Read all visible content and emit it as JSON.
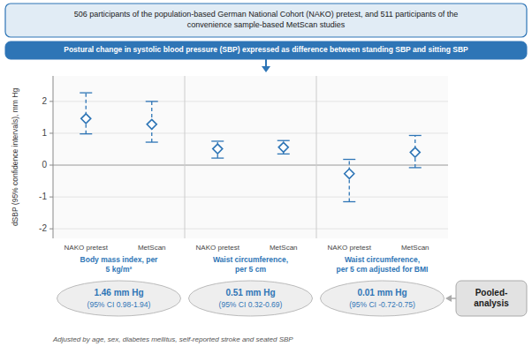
{
  "chart_data": {
    "type": "errorbar",
    "title": "506 participants of the population-based German National Cohort (NAKO) pretest, and 511 participants of the\nconvenience sample-based MetScan studies",
    "subtitle": "Postural change in systolic blood pressure (SBP) expressed as difference between standing SBP and sitting SBP",
    "ylabel": "dSBP (95% confidence intervals), mm Hg",
    "categories": [
      "NAKO pretest",
      "MetScan",
      "NAKO pretest",
      "MetScan",
      "NAKO pretest",
      "MetScan"
    ],
    "values": [
      1.46,
      1.28,
      0.51,
      0.56,
      -0.27,
      0.4
    ],
    "ci_low": [
      0.98,
      0.72,
      0.22,
      0.35,
      -1.15,
      -0.08
    ],
    "ci_high": [
      2.27,
      2.0,
      0.75,
      0.77,
      0.18,
      0.93
    ],
    "group_labels": [
      "Body mass index, per\n5 kg/m²",
      "Waist circumference,\nper 5 cm",
      "Waist circumference,\nper 5 cm adjusted for BMI"
    ],
    "pooled": [
      {
        "estimate": "1.46 mm Hg",
        "ci": "(95% CI 0.98-1.94)"
      },
      {
        "estimate": "0.51 mm Hg",
        "ci": "(95% CI 0.32-0.69)"
      },
      {
        "estimate": "0.01 mm Hg",
        "ci": "(95% CI -0.72-0.75)"
      }
    ],
    "pooled_label": "Pooled-\nanalysis",
    "footnote": "Adjusted by age, sex, diabetes mellitus, self-reported stroke and seated SBP",
    "ylim": [
      -2.3,
      2.8
    ],
    "yticks": [
      -2,
      -1,
      0,
      1,
      2
    ],
    "grid": true,
    "color": "#2E75B6",
    "marker": "diamond",
    "line_style": "dashed"
  }
}
